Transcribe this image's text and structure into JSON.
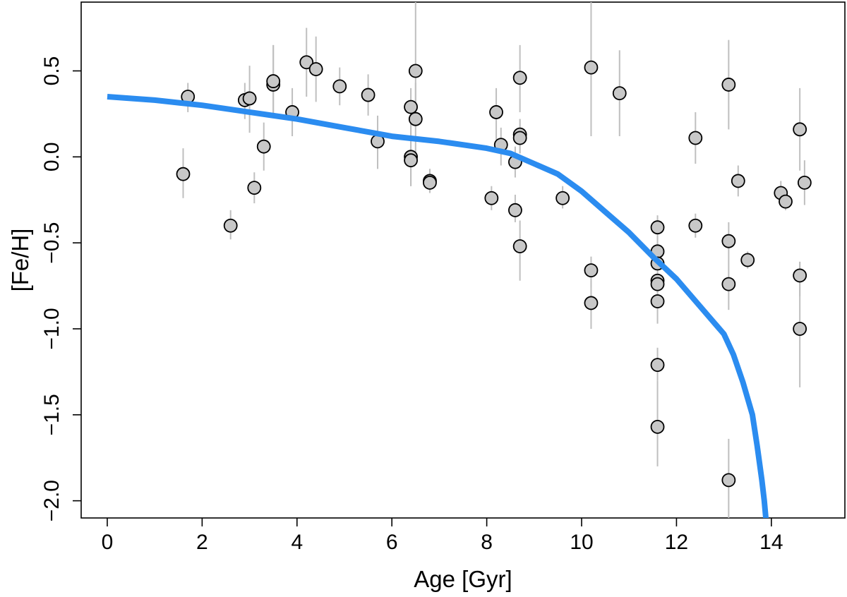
{
  "chart_data": {
    "type": "scatter",
    "title": "",
    "xlabel": "Age [Gyr]",
    "ylabel": "[Fe/H]",
    "xlim": [
      -0.55,
      15.55
    ],
    "ylim": [
      -2.1,
      0.9
    ],
    "xticks": [
      0,
      2,
      4,
      6,
      8,
      10,
      12,
      14
    ],
    "yticks": [
      0.5,
      0.0,
      -0.5,
      -1.0,
      -1.5,
      -2.0
    ],
    "xtick_labels": [
      "0",
      "2",
      "4",
      "6",
      "8",
      "10",
      "12",
      "14"
    ],
    "ytick_labels": [
      "0.5",
      "0.0",
      "−0.5",
      "−1.0",
      "−1.5",
      "−2.0"
    ],
    "grid": false,
    "colors": {
      "points_fill": "#c8c8c8",
      "points_edge": "#000000",
      "errorbar": "#bfbfbf",
      "curve": "#2b8cf0"
    },
    "points": [
      {
        "x": 1.6,
        "y": -0.1,
        "ylo": -0.24,
        "yhi": 0.05
      },
      {
        "x": 1.7,
        "y": 0.35,
        "ylo": 0.26,
        "yhi": 0.43
      },
      {
        "x": 2.6,
        "y": -0.4,
        "ylo": -0.48,
        "yhi": -0.31
      },
      {
        "x": 2.9,
        "y": 0.33,
        "ylo": 0.22,
        "yhi": 0.43
      },
      {
        "x": 3.0,
        "y": 0.34,
        "ylo": 0.14,
        "yhi": 0.53
      },
      {
        "x": 3.1,
        "y": -0.18,
        "ylo": -0.27,
        "yhi": -0.09
      },
      {
        "x": 3.3,
        "y": 0.06,
        "ylo": -0.08,
        "yhi": 0.2
      },
      {
        "x": 3.5,
        "y": 0.42,
        "ylo": 0.24,
        "yhi": 0.65
      },
      {
        "x": 3.5,
        "y": 0.44,
        "ylo": 0.24,
        "yhi": 0.65
      },
      {
        "x": 3.9,
        "y": 0.26,
        "ylo": 0.12,
        "yhi": 0.4
      },
      {
        "x": 4.2,
        "y": 0.55,
        "ylo": 0.35,
        "yhi": 0.75
      },
      {
        "x": 4.4,
        "y": 0.51,
        "ylo": 0.32,
        "yhi": 0.7
      },
      {
        "x": 4.9,
        "y": 0.41,
        "ylo": 0.3,
        "yhi": 0.52
      },
      {
        "x": 5.5,
        "y": 0.36,
        "ylo": 0.24,
        "yhi": 0.48
      },
      {
        "x": 5.7,
        "y": 0.09,
        "ylo": -0.07,
        "yhi": 0.24
      },
      {
        "x": 6.4,
        "y": 0.29,
        "ylo": 0.1,
        "yhi": 0.4
      },
      {
        "x": 6.4,
        "y": 0.0,
        "ylo": -0.17,
        "yhi": 0.19
      },
      {
        "x": 6.4,
        "y": -0.02,
        "ylo": -0.17,
        "yhi": 0.19
      },
      {
        "x": 6.5,
        "y": 0.5,
        "ylo": 0.3,
        "yhi": 0.9
      },
      {
        "x": 6.5,
        "y": 0.22,
        "ylo": 0.0,
        "yhi": 0.43
      },
      {
        "x": 6.8,
        "y": -0.14,
        "ylo": -0.21,
        "yhi": -0.07
      },
      {
        "x": 6.8,
        "y": -0.15,
        "ylo": -0.21,
        "yhi": -0.07
      },
      {
        "x": 8.1,
        "y": -0.24,
        "ylo": -0.31,
        "yhi": -0.17
      },
      {
        "x": 8.2,
        "y": 0.26,
        "ylo": 0.1,
        "yhi": 0.4
      },
      {
        "x": 8.3,
        "y": 0.07,
        "ylo": -0.05,
        "yhi": 0.17
      },
      {
        "x": 8.6,
        "y": -0.03,
        "ylo": -0.12,
        "yhi": 0.06
      },
      {
        "x": 8.6,
        "y": -0.31,
        "ylo": -0.38,
        "yhi": -0.22
      },
      {
        "x": 8.7,
        "y": 0.46,
        "ylo": 0.26,
        "yhi": 0.65
      },
      {
        "x": 8.7,
        "y": 0.13,
        "ylo": 0.02,
        "yhi": 0.22
      },
      {
        "x": 8.7,
        "y": 0.11,
        "ylo": 0.02,
        "yhi": 0.22
      },
      {
        "x": 8.7,
        "y": -0.52,
        "ylo": -0.72,
        "yhi": -0.37
      },
      {
        "x": 9.6,
        "y": -0.24,
        "ylo": -0.3,
        "yhi": -0.17
      },
      {
        "x": 10.2,
        "y": 0.52,
        "ylo": 0.12,
        "yhi": 0.9
      },
      {
        "x": 10.2,
        "y": -0.66,
        "ylo": -0.76,
        "yhi": -0.58
      },
      {
        "x": 10.2,
        "y": -0.85,
        "ylo": -1.0,
        "yhi": -0.72
      },
      {
        "x": 10.8,
        "y": 0.37,
        "ylo": 0.12,
        "yhi": 0.62
      },
      {
        "x": 11.6,
        "y": -0.41,
        "ylo": -0.58,
        "yhi": -0.34
      },
      {
        "x": 11.6,
        "y": -0.55,
        "ylo": -0.7,
        "yhi": -0.46
      },
      {
        "x": 11.6,
        "y": -0.62,
        "ylo": -0.72,
        "yhi": -0.52
      },
      {
        "x": 11.6,
        "y": -0.72,
        "ylo": -0.85,
        "yhi": -0.62
      },
      {
        "x": 11.6,
        "y": -0.74,
        "ylo": -0.85,
        "yhi": -0.62
      },
      {
        "x": 11.6,
        "y": -0.84,
        "ylo": -0.97,
        "yhi": -0.75
      },
      {
        "x": 11.6,
        "y": -1.21,
        "ylo": -1.3,
        "yhi": -1.11
      },
      {
        "x": 11.6,
        "y": -1.57,
        "ylo": -1.8,
        "yhi": -1.3
      },
      {
        "x": 12.4,
        "y": 0.11,
        "ylo": -0.04,
        "yhi": 0.26
      },
      {
        "x": 12.4,
        "y": -0.4,
        "ylo": -0.47,
        "yhi": -0.33
      },
      {
        "x": 13.1,
        "y": 0.42,
        "ylo": 0.16,
        "yhi": 0.68
      },
      {
        "x": 13.1,
        "y": -0.49,
        "ylo": -0.6,
        "yhi": -0.38
      },
      {
        "x": 13.1,
        "y": -0.74,
        "ylo": -0.89,
        "yhi": -0.6
      },
      {
        "x": 13.1,
        "y": -1.88,
        "ylo": -2.1,
        "yhi": -1.64
      },
      {
        "x": 13.3,
        "y": -0.14,
        "ylo": -0.23,
        "yhi": -0.05
      },
      {
        "x": 13.5,
        "y": -0.6,
        "ylo": -0.65,
        "yhi": -0.55
      },
      {
        "x": 14.2,
        "y": -0.21,
        "ylo": -0.27,
        "yhi": -0.14
      },
      {
        "x": 14.3,
        "y": -0.26,
        "ylo": -0.31,
        "yhi": -0.2
      },
      {
        "x": 14.6,
        "y": 0.16,
        "ylo": -0.08,
        "yhi": 0.4
      },
      {
        "x": 14.6,
        "y": -0.69,
        "ylo": -0.81,
        "yhi": -0.61
      },
      {
        "x": 14.6,
        "y": -1.0,
        "ylo": -1.34,
        "yhi": -0.61
      },
      {
        "x": 14.7,
        "y": -0.15,
        "ylo": -0.28,
        "yhi": -0.02
      }
    ],
    "curve": {
      "x": [
        0,
        1,
        2,
        3,
        4,
        5,
        6,
        7,
        8,
        8.5,
        9,
        9.5,
        10,
        10.5,
        11,
        11.5,
        12,
        12.5,
        13,
        13.2,
        13.4,
        13.6,
        13.7,
        13.8,
        13.85,
        13.9
      ],
      "y": [
        0.35,
        0.33,
        0.3,
        0.26,
        0.22,
        0.17,
        0.12,
        0.09,
        0.05,
        0.02,
        -0.04,
        -0.1,
        -0.2,
        -0.32,
        -0.44,
        -0.58,
        -0.71,
        -0.87,
        -1.03,
        -1.15,
        -1.31,
        -1.5,
        -1.68,
        -1.88,
        -2.0,
        -2.15
      ]
    }
  }
}
